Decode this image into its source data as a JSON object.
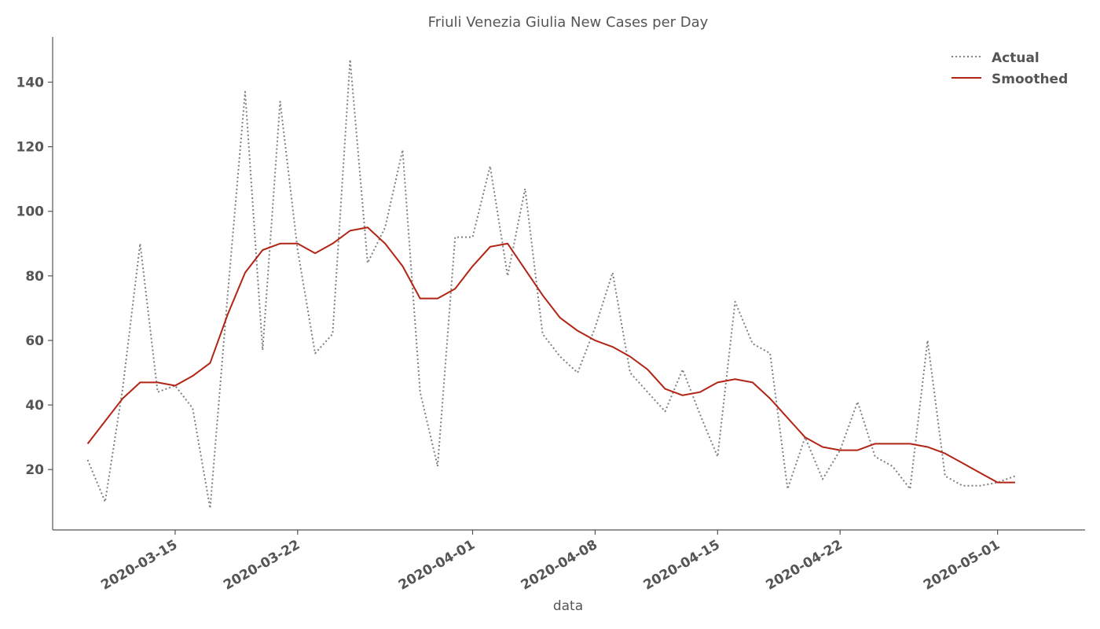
{
  "chart_data": {
    "type": "line",
    "title": "Friuli Venezia Giulia New Cases per Day",
    "xlabel": "data",
    "ylabel": "",
    "x_start": "2020-03-10",
    "x_ticks": [
      "2020-03-15",
      "2020-03-22",
      "2020-04-01",
      "2020-04-08",
      "2020-04-15",
      "2020-04-22",
      "2020-05-01"
    ],
    "y_ticks": [
      20,
      40,
      60,
      80,
      100,
      120,
      140
    ],
    "xlim": [
      "2020-03-08",
      "2020-05-06"
    ],
    "ylim": [
      1.3,
      154
    ],
    "grid": false,
    "legend_position": "top-right",
    "series": [
      {
        "name": "Actual",
        "style": "dotted",
        "color": "#808080",
        "values": [
          23,
          10,
          45,
          90,
          44,
          46,
          39,
          8,
          74,
          137,
          57,
          134,
          88,
          56,
          62,
          147,
          84,
          95,
          119,
          44,
          21,
          92,
          92,
          114,
          80,
          107,
          62,
          55,
          50,
          64,
          81,
          50,
          44,
          38,
          51,
          37,
          24,
          72,
          59,
          56,
          14,
          30,
          17,
          26,
          41,
          24,
          21,
          14,
          60,
          18,
          15,
          15,
          16,
          18
        ]
      },
      {
        "name": "Smoothed",
        "style": "solid",
        "color": "#b22414",
        "values": [
          28,
          35,
          42,
          47,
          47,
          46,
          49,
          53,
          68,
          81,
          88,
          90,
          90,
          87,
          90,
          94,
          95,
          90,
          83,
          73,
          73,
          76,
          83,
          89,
          90,
          82,
          74,
          67,
          63,
          60,
          58,
          55,
          51,
          45,
          43,
          44,
          47,
          48,
          47,
          42,
          36,
          30,
          27,
          26,
          26,
          28,
          28,
          28,
          27,
          25,
          22,
          19,
          16,
          16
        ]
      }
    ]
  }
}
